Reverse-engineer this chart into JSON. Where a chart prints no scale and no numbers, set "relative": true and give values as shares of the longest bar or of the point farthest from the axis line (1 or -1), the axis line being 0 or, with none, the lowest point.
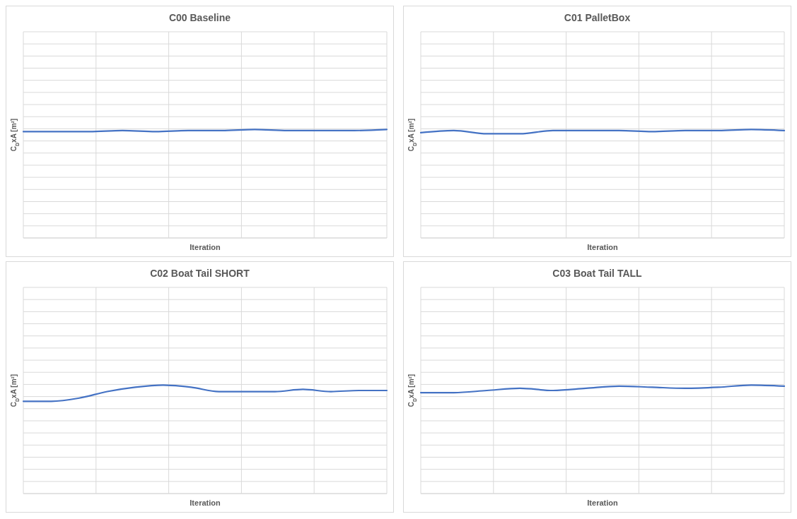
{
  "chart_data": [
    {
      "type": "line",
      "title": "C00 Baseline",
      "xlabel": "Iteration",
      "ylabel": "C$_{D}$xA [m²]",
      "relative": true,
      "grid": true,
      "categories": [
        null,
        null,
        null,
        null,
        null,
        null,
        null,
        null,
        null,
        null,
        null,
        null
      ],
      "series": [
        {
          "color": "#4472c4",
          "values": [
            0.98,
            0.98,
            0.98,
            0.99,
            0.98,
            0.99,
            0.99,
            1,
            0.99,
            0.99,
            0.99,
            1
          ]
        }
      ]
    },
    {
      "type": "line",
      "title": "C01 PalletBox",
      "xlabel": "Iteration",
      "ylabel": "C$_{D}$xA [m²]",
      "relative": true,
      "grid": true,
      "categories": [
        null,
        null,
        null,
        null,
        null,
        null,
        null,
        null,
        null,
        null,
        null,
        null
      ],
      "series": [
        {
          "color": "#4472c4",
          "values": [
            0.97,
            0.99,
            0.96,
            0.96,
            0.99,
            0.99,
            0.99,
            0.98,
            0.99,
            0.99,
            1,
            0.99
          ]
        }
      ]
    },
    {
      "type": "line",
      "title": "C02 Boat Tail SHORT",
      "xlabel": "Iteration",
      "ylabel": "C$_{D}$xA [m²]",
      "relative": true,
      "grid": true,
      "categories": [
        null,
        null,
        null,
        null,
        null,
        null,
        null,
        null,
        null,
        null,
        null,
        null,
        null,
        null
      ],
      "series": [
        {
          "color": "#4472c4",
          "values": [
            0.85,
            0.85,
            0.88,
            0.94,
            0.98,
            1,
            0.98,
            0.94,
            0.94,
            0.94,
            0.96,
            0.94,
            0.95,
            0.95
          ]
        }
      ]
    },
    {
      "type": "line",
      "title": "C03 Boat Tail TALL",
      "xlabel": "Iteration",
      "ylabel": "C$_{D}$xA [m²]",
      "relative": true,
      "grid": true,
      "categories": [
        null,
        null,
        null,
        null,
        null,
        null,
        null,
        null,
        null,
        null,
        null,
        null
      ],
      "series": [
        {
          "color": "#4472c4",
          "values": [
            0.93,
            0.93,
            0.95,
            0.97,
            0.95,
            0.97,
            0.99,
            0.98,
            0.97,
            0.98,
            1,
            0.99
          ]
        }
      ]
    }
  ]
}
